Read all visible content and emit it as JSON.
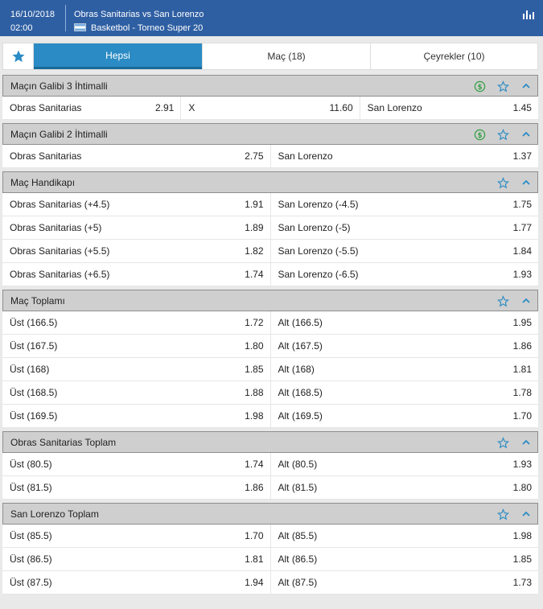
{
  "header": {
    "date": "16/10/2018",
    "time": "02:00",
    "match": "Obras Sanitarias vs San Lorenzo",
    "competition": "Basketbol - Torneo Super 20"
  },
  "tabs": [
    {
      "label": "Hepsi"
    },
    {
      "label": "Maç (18)"
    },
    {
      "label": "Çeyrekler (10)"
    }
  ],
  "colors": {
    "header_bg": "#2f5fa3",
    "tab_active": "#2b8bc4",
    "star": "#2b8bc4",
    "cashout": "#3aa048",
    "market_header": "#cfcfcf"
  },
  "markets": [
    {
      "title": "Maçın Galibi 3 İhtimalli",
      "cashout": true,
      "rows": [
        [
          [
            "Obras Sanitarias",
            "2.91"
          ],
          [
            "X",
            "11.60"
          ],
          [
            "San Lorenzo",
            "1.45"
          ]
        ]
      ]
    },
    {
      "title": "Maçın Galibi 2 İhtimalli",
      "cashout": true,
      "rows": [
        [
          [
            "Obras Sanitarias",
            "2.75"
          ],
          [
            "San Lorenzo",
            "1.37"
          ]
        ]
      ]
    },
    {
      "title": "Maç Handikapı",
      "cashout": false,
      "rows": [
        [
          [
            "Obras Sanitarias (+4.5)",
            "1.91"
          ],
          [
            "San Lorenzo (-4.5)",
            "1.75"
          ]
        ],
        [
          [
            "Obras Sanitarias (+5)",
            "1.89"
          ],
          [
            "San Lorenzo (-5)",
            "1.77"
          ]
        ],
        [
          [
            "Obras Sanitarias (+5.5)",
            "1.82"
          ],
          [
            "San Lorenzo (-5.5)",
            "1.84"
          ]
        ],
        [
          [
            "Obras Sanitarias (+6.5)",
            "1.74"
          ],
          [
            "San Lorenzo (-6.5)",
            "1.93"
          ]
        ]
      ]
    },
    {
      "title": "Maç Toplamı",
      "cashout": false,
      "rows": [
        [
          [
            "Üst (166.5)",
            "1.72"
          ],
          [
            "Alt (166.5)",
            "1.95"
          ]
        ],
        [
          [
            "Üst (167.5)",
            "1.80"
          ],
          [
            "Alt (167.5)",
            "1.86"
          ]
        ],
        [
          [
            "Üst (168)",
            "1.85"
          ],
          [
            "Alt (168)",
            "1.81"
          ]
        ],
        [
          [
            "Üst (168.5)",
            "1.88"
          ],
          [
            "Alt (168.5)",
            "1.78"
          ]
        ],
        [
          [
            "Üst (169.5)",
            "1.98"
          ],
          [
            "Alt (169.5)",
            "1.70"
          ]
        ]
      ]
    },
    {
      "title": "Obras Sanitarias Toplam",
      "cashout": false,
      "rows": [
        [
          [
            "Üst (80.5)",
            "1.74"
          ],
          [
            "Alt (80.5)",
            "1.93"
          ]
        ],
        [
          [
            "Üst (81.5)",
            "1.86"
          ],
          [
            "Alt (81.5)",
            "1.80"
          ]
        ]
      ]
    },
    {
      "title": "San Lorenzo Toplam",
      "cashout": false,
      "rows": [
        [
          [
            "Üst (85.5)",
            "1.70"
          ],
          [
            "Alt (85.5)",
            "1.98"
          ]
        ],
        [
          [
            "Üst (86.5)",
            "1.81"
          ],
          [
            "Alt (86.5)",
            "1.85"
          ]
        ],
        [
          [
            "Üst (87.5)",
            "1.94"
          ],
          [
            "Alt (87.5)",
            "1.73"
          ]
        ]
      ]
    }
  ]
}
